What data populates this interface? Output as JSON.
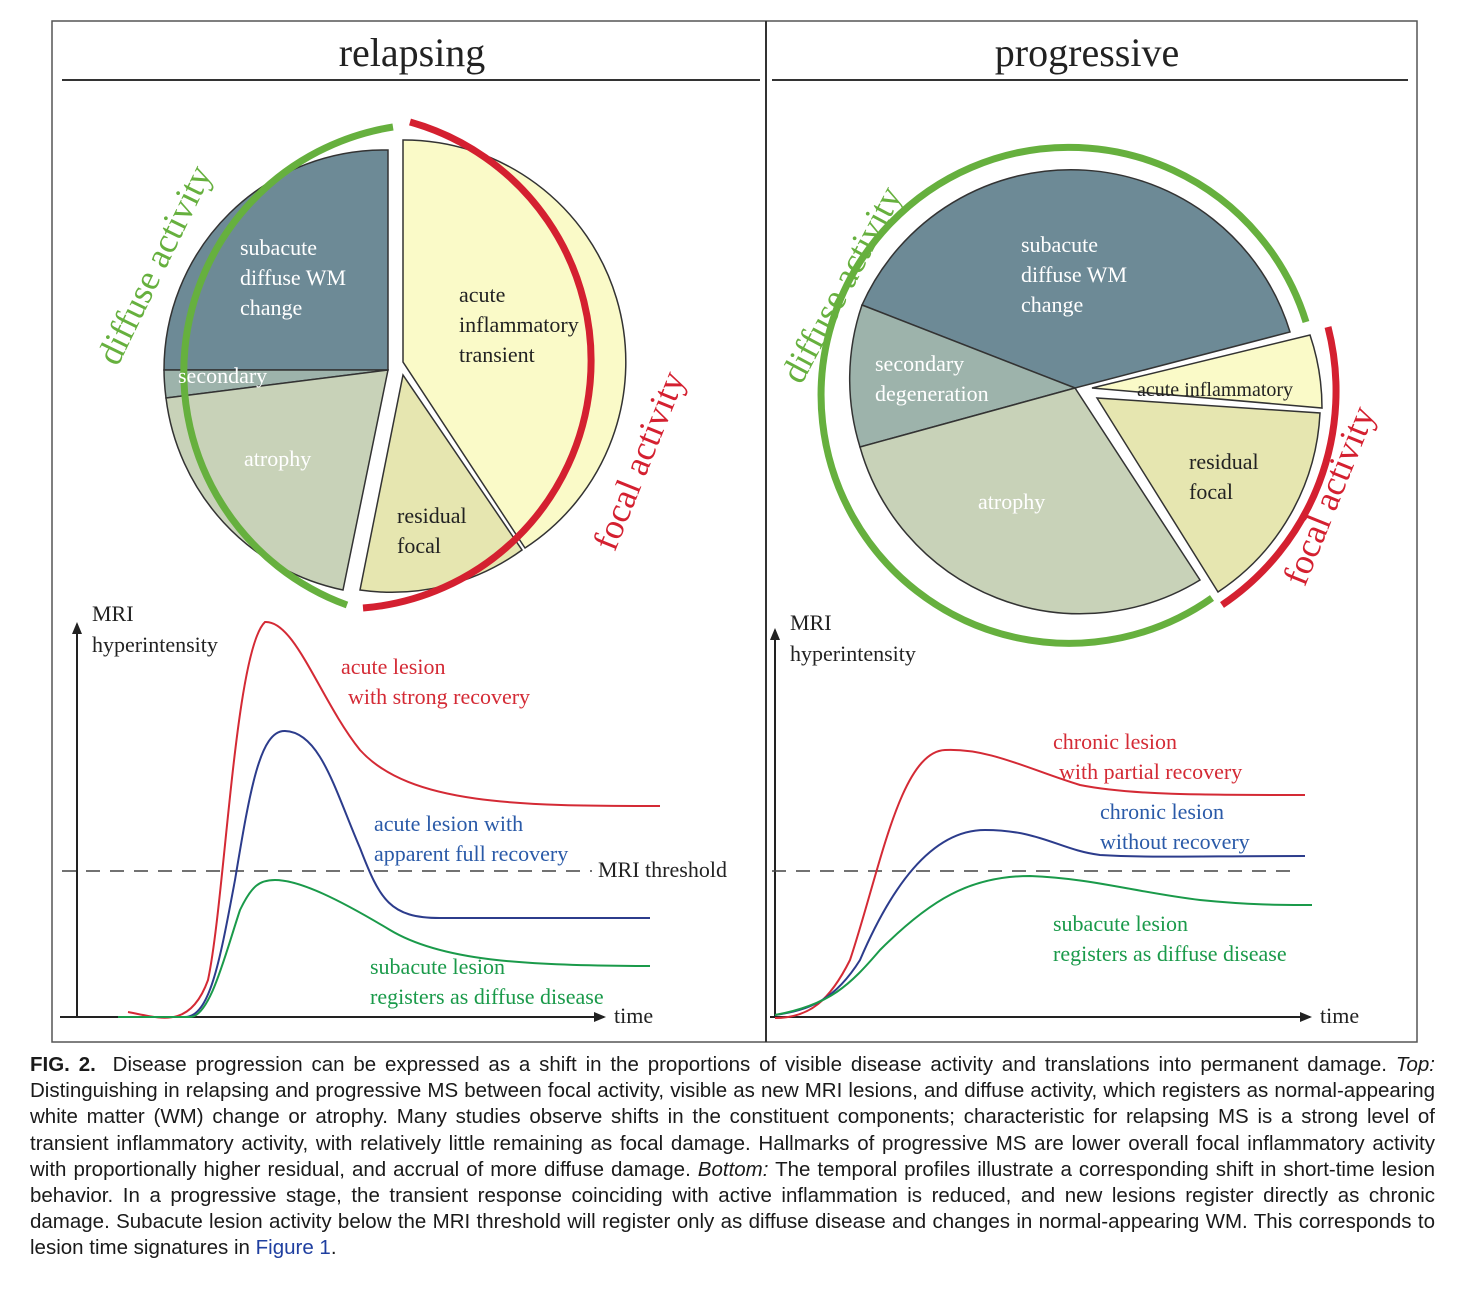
{
  "panels": {
    "left": {
      "title": "relapsing",
      "pie": {
        "subacute": [
          "subacute",
          "diffuse WM",
          "change"
        ],
        "secondary": "secondary",
        "atrophy": "atrophy",
        "acute": [
          "acute",
          "inflammatory",
          "transient"
        ],
        "residual": [
          "residual",
          "focal"
        ]
      },
      "arc_diffuse": "diffuse activity",
      "arc_focal": "focal activity",
      "graph": {
        "ylabel": [
          "MRI",
          "hyperintensity"
        ],
        "xlabel": "time",
        "threshold": "MRI threshold",
        "red": [
          "acute lesion",
          "with strong recovery"
        ],
        "blue": [
          "acute lesion with",
          "apparent full recovery"
        ],
        "green": [
          "subacute lesion",
          "registers as diffuse disease"
        ]
      }
    },
    "right": {
      "title": "progressive",
      "pie": {
        "subacute": [
          "subacute",
          "diffuse WM",
          "change"
        ],
        "secondary": [
          "secondary",
          "degeneration"
        ],
        "atrophy": "atrophy",
        "acute": "acute inflammatory",
        "residual": [
          "residual",
          "focal"
        ]
      },
      "arc_diffuse": "diffuse activity",
      "arc_focal": "focal activity",
      "graph": {
        "ylabel": [
          "MRI",
          "hyperintensity"
        ],
        "xlabel": "time",
        "red": [
          "chronic lesion",
          "with partial recovery"
        ],
        "blue": [
          "chronic lesion",
          "without recovery"
        ],
        "green": [
          "subacute lesion",
          "registers as diffuse disease"
        ]
      }
    }
  },
  "colors": {
    "subacute": "#6d8a96",
    "secondary": "#9db3ab",
    "atrophy": "#c8d2b8",
    "acute": "#fafac8",
    "residual": "#e6e6b0",
    "diffuse_arc": "#66b03e",
    "focal_arc": "#d42030",
    "red": "#d42a35",
    "blue": "#2c3c8c",
    "green": "#1a9a4a",
    "blue_label": "#2a5aa8",
    "green_label": "#1a9a4a"
  },
  "caption": {
    "fig_num": "FIG. 2.",
    "part1": "Disease progression can be expressed as a shift in the proportions of visible disease activity and translations into permanent damage.",
    "top_label": "Top:",
    "part2": "Distinguishing in relapsing and progressive MS between focal activity, visible as new MRI lesions, and diffuse activity, which registers as normal-appearing white matter (WM) change or atrophy. Many studies observe shifts in the constituent components; characteristic for relapsing MS is a strong level of transient inflammatory activity, with relatively little remaining as focal damage. Hallmarks of progressive MS are lower overall focal inflammatory activity with proportionally higher residual, and accrual of more diffuse damage.",
    "bottom_label": "Bottom:",
    "part3": "The temporal profiles illustrate a corresponding shift in short-time lesion behavior. In a progressive stage, the transient response coinciding with active inflammation is reduced, and new lesions register directly as chronic damage. Subacute lesion activity below the MRI threshold will register only as diffuse disease and changes in normal-appearing WM. This corresponds to lesion time signatures in",
    "link": "Figure 1",
    "end": "."
  }
}
